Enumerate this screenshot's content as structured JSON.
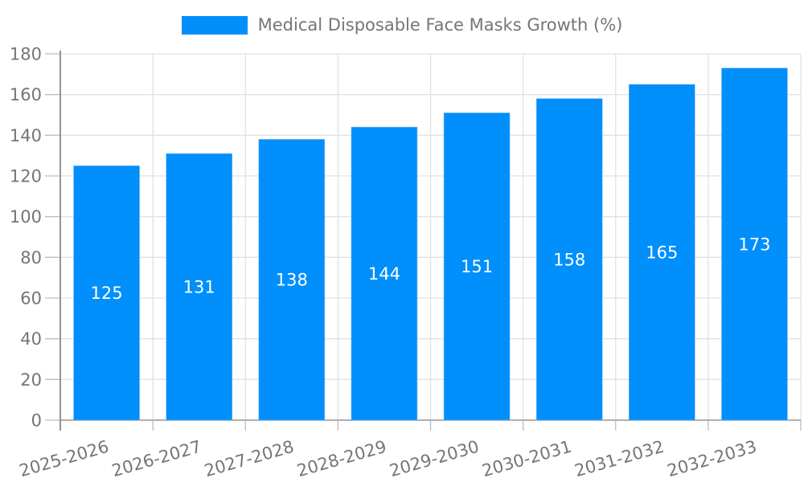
{
  "legend": {
    "label": "Medical Disposable Face Masks Growth (%)"
  },
  "chart_data": {
    "type": "bar",
    "title": "Medical Disposable Face Masks Growth (%)",
    "categories": [
      "2025-2026",
      "2026-2027",
      "2027-2028",
      "2028-2029",
      "2029-2030",
      "2030-2031",
      "2031-2032",
      "2032-2033"
    ],
    "values": [
      125,
      131,
      138,
      144,
      151,
      158,
      165,
      173
    ],
    "xlabel": "",
    "ylabel": "",
    "ylim": [
      0,
      180
    ],
    "y_ticks": [
      0,
      20,
      40,
      60,
      80,
      100,
      120,
      140,
      160,
      180
    ],
    "grid": true,
    "legend_position": "top",
    "x_label_rotation_deg": -16,
    "value_labels": "inside-center",
    "colors": {
      "bar": "#008FFB",
      "bar_edge": "#7DBDF7",
      "value_label": "#FFFFFF",
      "axis_text": "#757575",
      "gridline": "#E2E2E2",
      "y_axis_line": "#949494",
      "baseline": "#B0B0B0",
      "tick": "#BDBDBD"
    }
  }
}
